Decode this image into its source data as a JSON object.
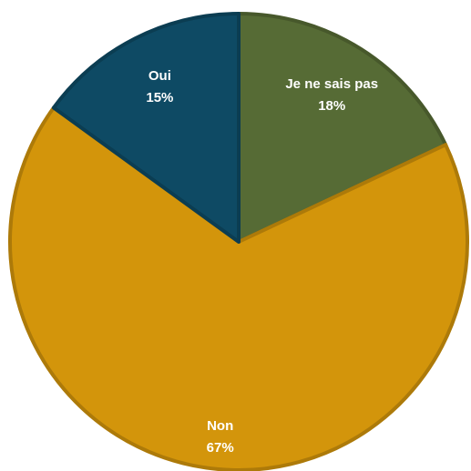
{
  "chart_data": {
    "type": "pie",
    "categories": [
      "Je ne sais pas",
      "Non",
      "Oui"
    ],
    "values": [
      18,
      67,
      15
    ],
    "value_labels": [
      "18%",
      "67%",
      "15%"
    ],
    "colors": [
      "#566b35",
      "#d3950b",
      "#0e4a64"
    ]
  }
}
